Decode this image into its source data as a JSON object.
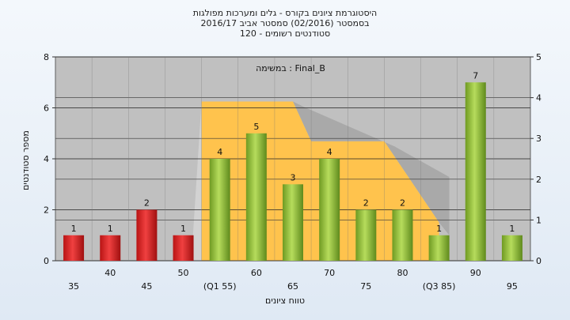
{
  "chart_data": {
    "type": "bar",
    "title_lines": [
      "היסטוגרמת ציונים בקורס - גלים ומערכות מפולגות",
      "בסמסטר  (02/2016)  סמסטר אביב 2016/17",
      "סטודנטים רשומים - 120"
    ],
    "annotation": "במשימה : Final_B",
    "xlabel": "טווח ציונים",
    "ylabel": "מספר סטודנטים",
    "ylim": [
      0,
      8
    ],
    "yticks": [
      0,
      2,
      4,
      6,
      8
    ],
    "y2lim": [
      0,
      5
    ],
    "y2ticks": [
      0,
      1,
      2,
      3,
      4,
      5
    ],
    "categories": [
      "35",
      "40",
      "45",
      "50",
      "(Q1 55)",
      "60",
      "65",
      "70",
      "75",
      "80",
      "(Q3 85)",
      "90",
      "95"
    ],
    "values": [
      1,
      1,
      2,
      1,
      4,
      5,
      3,
      4,
      2,
      2,
      1,
      7,
      1
    ],
    "bar_colors": [
      "#dd2222",
      "#dd2222",
      "#dd2222",
      "#dd2222",
      "#8fbe3a",
      "#8fbe3a",
      "#8fbe3a",
      "#8fbe3a",
      "#8fbe3a",
      "#8fbe3a",
      "#8fbe3a",
      "#8fbe3a",
      "#8fbe3a"
    ],
    "colors": {
      "plot_bg": "#c0c0c0",
      "band": "#ffc34d",
      "fail_bar": "#dd2222",
      "pass_bar": "#8fbe3a"
    },
    "grid": true
  }
}
